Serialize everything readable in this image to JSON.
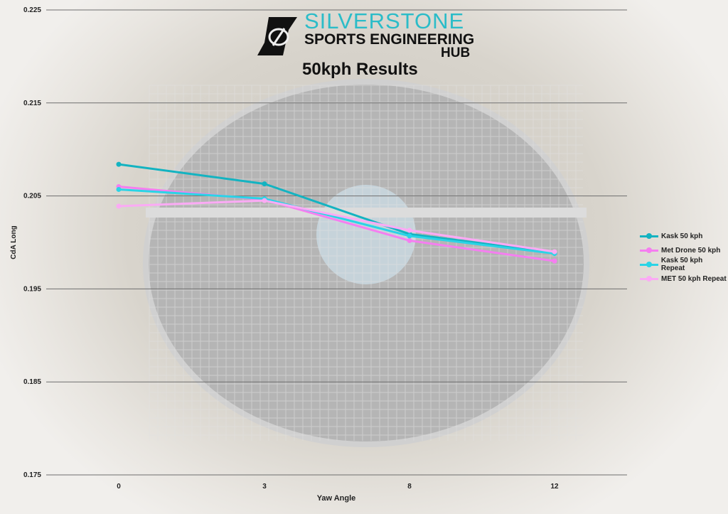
{
  "logo": {
    "line1": "SILVERSTONE",
    "line2": "SPORTS ENGINEERING",
    "line3": "HUB"
  },
  "chart_data": {
    "type": "line",
    "title": "50kph Results",
    "xlabel": "Yaw Angle",
    "ylabel": "CdA Long",
    "categories": [
      "0",
      "3",
      "8",
      "12"
    ],
    "ylim": [
      0.175,
      0.225
    ],
    "yticks": [
      "0.175",
      "0.185",
      "0.195",
      "0.205",
      "0.215",
      "0.225"
    ],
    "grid": true,
    "legend": "right",
    "series": [
      {
        "name": "Kask 50 kph",
        "color": "#13b3c1",
        "values": [
          0.2084,
          0.2063,
          0.2009,
          0.1989
        ]
      },
      {
        "name": "Met Drone 50 kph",
        "color": "#f57ef0",
        "values": [
          0.206,
          0.2046,
          0.2002,
          0.198
        ]
      },
      {
        "name": "Kask 50 kph Repeat",
        "color": "#2ad4e6",
        "values": [
          0.2057,
          0.2047,
          0.2007,
          0.1988
        ]
      },
      {
        "name": "MET 50 kph Repeat",
        "color": "#fbaaf5",
        "values": [
          0.2039,
          0.2045,
          0.2013,
          0.199
        ]
      }
    ]
  }
}
